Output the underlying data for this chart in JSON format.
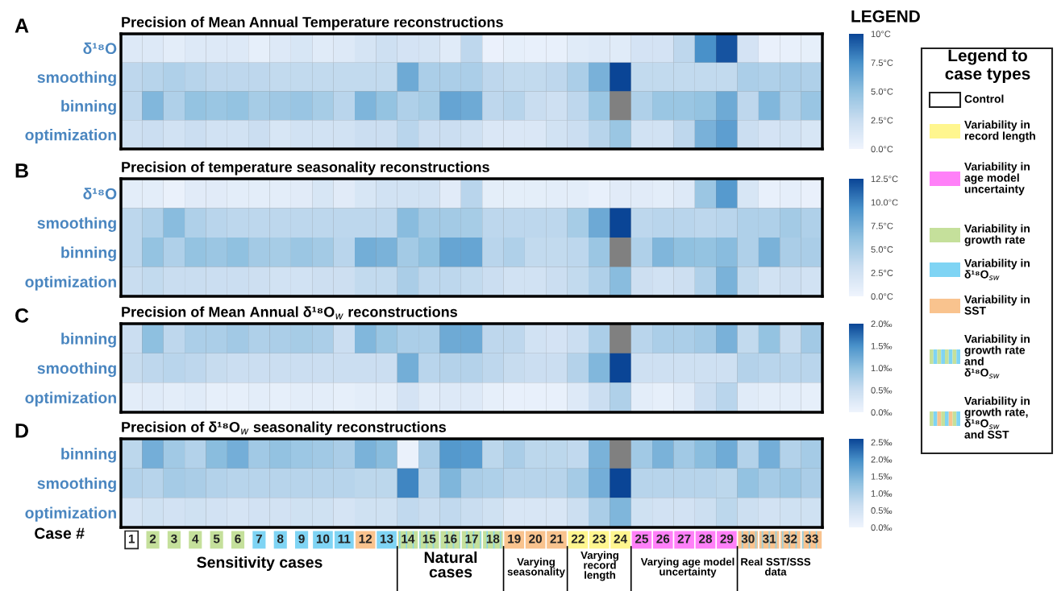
{
  "chart_data": [
    {
      "type": "heatmap",
      "title": "Precision of Mean Annual Temperature reconstructions",
      "annotations": [
        "A"
      ],
      "tick_labels": "y",
      "categories": [
        "1",
        "2",
        "3",
        "4",
        "5",
        "6",
        "7",
        "8",
        "9",
        "10",
        "11",
        "12",
        "13",
        "14",
        "15",
        "16",
        "17",
        "18",
        "19",
        "20",
        "21",
        "22",
        "23",
        "24",
        "25",
        "26",
        "27",
        "28",
        "29",
        "30",
        "31",
        "32",
        "33"
      ],
      "y_categories": [
        "δ¹⁸O",
        "smoothing",
        "binning",
        "optimization"
      ],
      "cells": [
        [
          1.2,
          1.2,
          0.8,
          1.2,
          1.2,
          1.2,
          0.6,
          1.2,
          1.6,
          1.0,
          1.2,
          1.7,
          2.2,
          1.8,
          1.7,
          1.0,
          3.0,
          0.3,
          0.6,
          0.5,
          0.5,
          1.0,
          1.2,
          1.0,
          1.8,
          1.8,
          3.0,
          7.5,
          9.5,
          1.8,
          0.4,
          0.5,
          0.6
        ],
        [
          3.0,
          3.3,
          3.6,
          3.3,
          3.0,
          3.0,
          3.0,
          2.8,
          2.8,
          2.8,
          2.8,
          2.8,
          2.8,
          6.2,
          3.8,
          3.8,
          3.8,
          3.0,
          2.8,
          2.8,
          3.0,
          3.8,
          5.8,
          10,
          2.8,
          2.8,
          2.8,
          2.8,
          2.8,
          3.8,
          3.6,
          3.8,
          3.6
        ],
        [
          3.0,
          5.5,
          3.6,
          4.8,
          4.5,
          4.8,
          4.0,
          4.3,
          4.6,
          4.0,
          3.2,
          5.6,
          4.8,
          3.6,
          4.0,
          6.5,
          6.2,
          3.0,
          3.3,
          2.5,
          2.2,
          3.0,
          4.5,
          null,
          3.6,
          4.5,
          4.5,
          4.8,
          6.2,
          3.0,
          5.5,
          3.6,
          4.6
        ],
        [
          2.2,
          2.4,
          2.0,
          2.4,
          2.0,
          2.0,
          2.4,
          1.6,
          2.0,
          2.0,
          2.0,
          2.4,
          2.4,
          3.2,
          2.4,
          2.4,
          2.2,
          1.4,
          1.4,
          1.4,
          2.0,
          2.4,
          3.3,
          4.5,
          2.0,
          2.0,
          3.0,
          5.8,
          6.8,
          2.4,
          1.8,
          2.0,
          1.6
        ]
      ],
      "clim": [
        0,
        10
      ],
      "cticks": [
        {
          "value": 0,
          "label": "0.0°C"
        },
        {
          "value": 2.5,
          "label": "2.5°C"
        },
        {
          "value": 5,
          "label": "5.0°C"
        },
        {
          "value": 7.5,
          "label": "7.5°C"
        },
        {
          "value": 10,
          "label": "10°C"
        }
      ]
    },
    {
      "type": "heatmap",
      "title": "Precision of temperature seasonality reconstructions",
      "annotations": [
        "B"
      ],
      "tick_labels": "y",
      "categories": [
        "1",
        "2",
        "3",
        "4",
        "5",
        "6",
        "7",
        "8",
        "9",
        "10",
        "11",
        "12",
        "13",
        "14",
        "15",
        "16",
        "17",
        "18",
        "19",
        "20",
        "21",
        "22",
        "23",
        "24",
        "25",
        "26",
        "27",
        "28",
        "29",
        "30",
        "31",
        "32",
        "33"
      ],
      "y_categories": [
        "δ¹⁸O",
        "smoothing",
        "binning",
        "optimization"
      ],
      "cells": [
        [
          1.0,
          1.0,
          0.4,
          1.2,
          1.2,
          1.0,
          1.0,
          1.0,
          1.2,
          2.0,
          1.2,
          2.0,
          2.5,
          2.5,
          2.5,
          1.2,
          4.0,
          0.9,
          0.9,
          0.9,
          1.0,
          1.0,
          0.6,
          1.2,
          1.2,
          1.0,
          1.5,
          5.6,
          8.8,
          2.0,
          0.6,
          0.8,
          0.5
        ],
        [
          3.8,
          4.5,
          6.5,
          4.5,
          4.0,
          3.8,
          3.8,
          3.8,
          3.8,
          3.8,
          3.8,
          3.8,
          3.8,
          6.5,
          5.2,
          5.2,
          5.0,
          3.8,
          3.8,
          3.8,
          3.8,
          5.0,
          7.8,
          12.5,
          3.8,
          4.0,
          4.0,
          3.8,
          4.0,
          4.5,
          4.5,
          5.2,
          4.5
        ],
        [
          3.8,
          6.0,
          4.5,
          6.0,
          5.6,
          6.2,
          5.2,
          5.0,
          5.6,
          5.2,
          4.0,
          7.5,
          7.2,
          5.2,
          6.2,
          8.1,
          8.1,
          4.0,
          4.5,
          3.5,
          3.5,
          3.8,
          5.6,
          null,
          4.5,
          6.9,
          6.2,
          6.0,
          6.5,
          4.5,
          7.2,
          4.8,
          4.8
        ],
        [
          3.1,
          3.5,
          3.1,
          3.1,
          3.0,
          3.0,
          2.8,
          2.5,
          2.5,
          2.8,
          2.8,
          3.5,
          3.5,
          4.8,
          3.8,
          3.8,
          3.5,
          3.0,
          2.5,
          2.5,
          3.0,
          3.5,
          4.5,
          6.5,
          2.8,
          2.5,
          2.8,
          4.5,
          7.2,
          3.5,
          2.5,
          2.8,
          2.5
        ]
      ],
      "clim": [
        0,
        12.5
      ],
      "cticks": [
        {
          "value": 0,
          "label": "0.0°C"
        },
        {
          "value": 2.5,
          "label": "2.5°C"
        },
        {
          "value": 5,
          "label": "5.0°C"
        },
        {
          "value": 7.5,
          "label": "7.5°C"
        },
        {
          "value": 10,
          "label": "10.0°C"
        },
        {
          "value": 12.5,
          "label": "12.5°C"
        }
      ]
    },
    {
      "type": "heatmap",
      "title": "Precision of Mean Annual δ¹⁸O$_{w}$ reconstructions",
      "annotations": [
        "C"
      ],
      "tick_labels": "y",
      "categories": [
        "1",
        "2",
        "3",
        "4",
        "5",
        "6",
        "7",
        "8",
        "9",
        "10",
        "11",
        "12",
        "13",
        "14",
        "15",
        "16",
        "17",
        "18",
        "19",
        "20",
        "21",
        "22",
        "23",
        "24",
        "25",
        "26",
        "27",
        "28",
        "29",
        "30",
        "31",
        "32",
        "33"
      ],
      "y_categories": [
        "binning",
        "smoothing",
        "optimization"
      ],
      "cells": [
        [
          0.48,
          1.0,
          0.6,
          0.76,
          0.76,
          0.84,
          0.72,
          0.76,
          0.8,
          0.76,
          0.48,
          1.1,
          0.9,
          0.76,
          0.76,
          1.24,
          1.24,
          0.6,
          0.6,
          0.4,
          0.36,
          0.48,
          0.76,
          null,
          0.64,
          0.76,
          0.76,
          0.84,
          1.16,
          0.56,
          0.96,
          0.52,
          0.84
        ],
        [
          0.52,
          0.6,
          0.64,
          0.6,
          0.52,
          0.48,
          0.48,
          0.48,
          0.48,
          0.48,
          0.48,
          0.48,
          0.48,
          1.2,
          0.64,
          0.68,
          0.68,
          0.6,
          0.52,
          0.48,
          0.48,
          0.68,
          1.1,
          2.0,
          0.44,
          0.44,
          0.44,
          0.44,
          0.44,
          0.68,
          0.64,
          0.64,
          0.64
        ],
        [
          0.16,
          0.2,
          0.16,
          0.2,
          0.12,
          0.12,
          0.16,
          0.12,
          0.16,
          0.16,
          0.12,
          0.16,
          0.16,
          0.36,
          0.2,
          0.24,
          0.24,
          0.12,
          0.1,
          0.1,
          0.1,
          0.24,
          0.48,
          0.72,
          0.16,
          0.12,
          0.2,
          0.48,
          0.64,
          0.2,
          0.16,
          0.16,
          0.12
        ]
      ],
      "clim": [
        0,
        2.0
      ],
      "cticks": [
        {
          "value": 0,
          "label": "0.0‰"
        },
        {
          "value": 0.5,
          "label": "0.5‰"
        },
        {
          "value": 1.0,
          "label": "1.0‰"
        },
        {
          "value": 1.5,
          "label": "1.5‰"
        },
        {
          "value": 2.0,
          "label": "2.0‰"
        }
      ]
    },
    {
      "type": "heatmap",
      "title": "Precision of δ¹⁸O$_{w}$ seasonality reconstructions",
      "annotations": [
        "D"
      ],
      "categories": [
        "1",
        "2",
        "3",
        "4",
        "5",
        "6",
        "7",
        "8",
        "9",
        "10",
        "11",
        "12",
        "13",
        "14",
        "15",
        "16",
        "17",
        "18",
        "19",
        "20",
        "21",
        "22",
        "23",
        "24",
        "25",
        "26",
        "27",
        "28",
        "29",
        "30",
        "31",
        "32",
        "33"
      ],
      "y_categories": [
        "binning",
        "smoothing",
        "optimization"
      ],
      "cells": [
        [
          0.8,
          1.55,
          1.1,
          0.9,
          1.35,
          1.55,
          1.1,
          1.25,
          1.15,
          1.1,
          1.0,
          1.5,
          1.35,
          0.1,
          1.0,
          1.85,
          1.8,
          0.8,
          1.0,
          0.8,
          0.8,
          0.75,
          1.5,
          null,
          1.1,
          1.5,
          1.1,
          1.35,
          1.6,
          0.9,
          1.55,
          0.9,
          1.05
        ],
        [
          0.9,
          0.85,
          1.05,
          1.0,
          0.9,
          0.85,
          0.85,
          0.85,
          0.85,
          0.85,
          0.85,
          0.8,
          0.8,
          2.05,
          0.85,
          1.45,
          1.0,
          0.95,
          0.85,
          0.85,
          0.85,
          1.05,
          1.55,
          2.6,
          0.85,
          0.85,
          0.85,
          0.85,
          0.8,
          1.25,
          1.05,
          1.15,
          1.0
        ],
        [
          0.45,
          0.55,
          0.5,
          0.55,
          0.5,
          0.45,
          0.5,
          0.5,
          0.55,
          0.55,
          0.45,
          0.55,
          0.55,
          0.75,
          0.65,
          0.75,
          0.65,
          0.55,
          0.4,
          0.4,
          0.4,
          0.6,
          1.0,
          1.45,
          0.55,
          0.5,
          0.5,
          0.6,
          0.8,
          0.6,
          0.5,
          0.55,
          0.55
        ]
      ],
      "clim": [
        0,
        2.6
      ],
      "cticks": [
        {
          "value": 0,
          "label": "0.0‰"
        },
        {
          "value": 0.5,
          "label": "0.5‰"
        },
        {
          "value": 1.0,
          "label": "1.0‰"
        },
        {
          "value": 1.5,
          "label": "1.5‰"
        },
        {
          "value": 2.0,
          "label": "2.0‰"
        },
        {
          "value": 2.5,
          "label": "2.5‰"
        }
      ]
    },
    {
      "type": "other",
      "annotations": [
        "LEGEND",
        "Legend to case types",
        "Control",
        "Variability in record length",
        "Variability in age model uncertainty",
        "Variability in growth rate",
        "Variability in δ¹⁸O$_{sw}$",
        "Variability in SST",
        "Variability in growth rate and δ¹⁸O$_{sw}$",
        "Variability in growth rate, δ¹⁸O$_{sw}$ and SST",
        "Case #",
        "Sensitivity cases",
        "Natural cases",
        "Varying seasonality",
        "Varying record length",
        "Varying age model uncertainty",
        "Real SST/SSS data"
      ]
    }
  ]
}
